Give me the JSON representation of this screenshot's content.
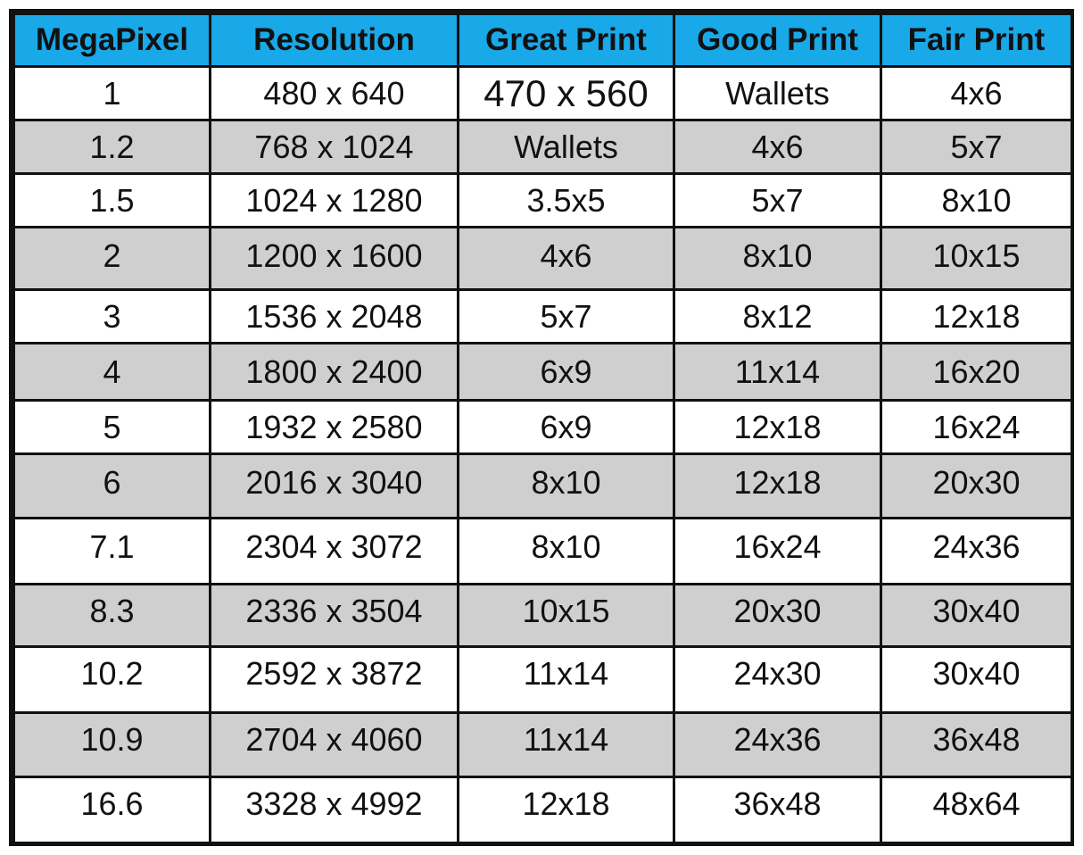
{
  "table": {
    "headers": [
      "MegaPixel",
      "Resolution",
      "Great Print",
      "Good Print",
      "Fair Print"
    ],
    "rows": [
      [
        "1",
        "480 x 640",
        "470 x 560",
        "Wallets",
        "4x6"
      ],
      [
        "1.2",
        "768 x 1024",
        "Wallets",
        "4x6",
        "5x7"
      ],
      [
        "1.5",
        "1024 x 1280",
        "3.5x5",
        "5x7",
        "8x10"
      ],
      [
        "2",
        "1200 x 1600",
        "4x6",
        "8x10",
        "10x15"
      ],
      [
        "3",
        "1536 x 2048",
        "5x7",
        "8x12",
        "12x18"
      ],
      [
        "4",
        "1800 x 2400",
        "6x9",
        "11x14",
        "16x20"
      ],
      [
        "5",
        "1932 x 2580",
        "6x9",
        "12x18",
        "16x24"
      ],
      [
        "6",
        "2016 x 3040",
        "8x10",
        "12x18",
        "20x30"
      ],
      [
        "7.1",
        "2304 x 3072",
        "8x10",
        "16x24",
        "24x36"
      ],
      [
        "8.3",
        "2336 x 3504",
        "10x15",
        "20x30",
        "30x40"
      ],
      [
        "10.2",
        "2592 x 3872",
        "11x14",
        "24x30",
        "30x40"
      ],
      [
        "10.9",
        "2704 x 4060",
        "11x14",
        "24x36",
        "36x48"
      ],
      [
        "16.6",
        "3328 x 4992",
        "12x18",
        "36x48",
        "48x64"
      ]
    ]
  },
  "colors": {
    "header_background": "#19a8e8",
    "alternate_row_background": "#cfcfcf",
    "row_background": "#ffffff",
    "border": "#111111"
  }
}
